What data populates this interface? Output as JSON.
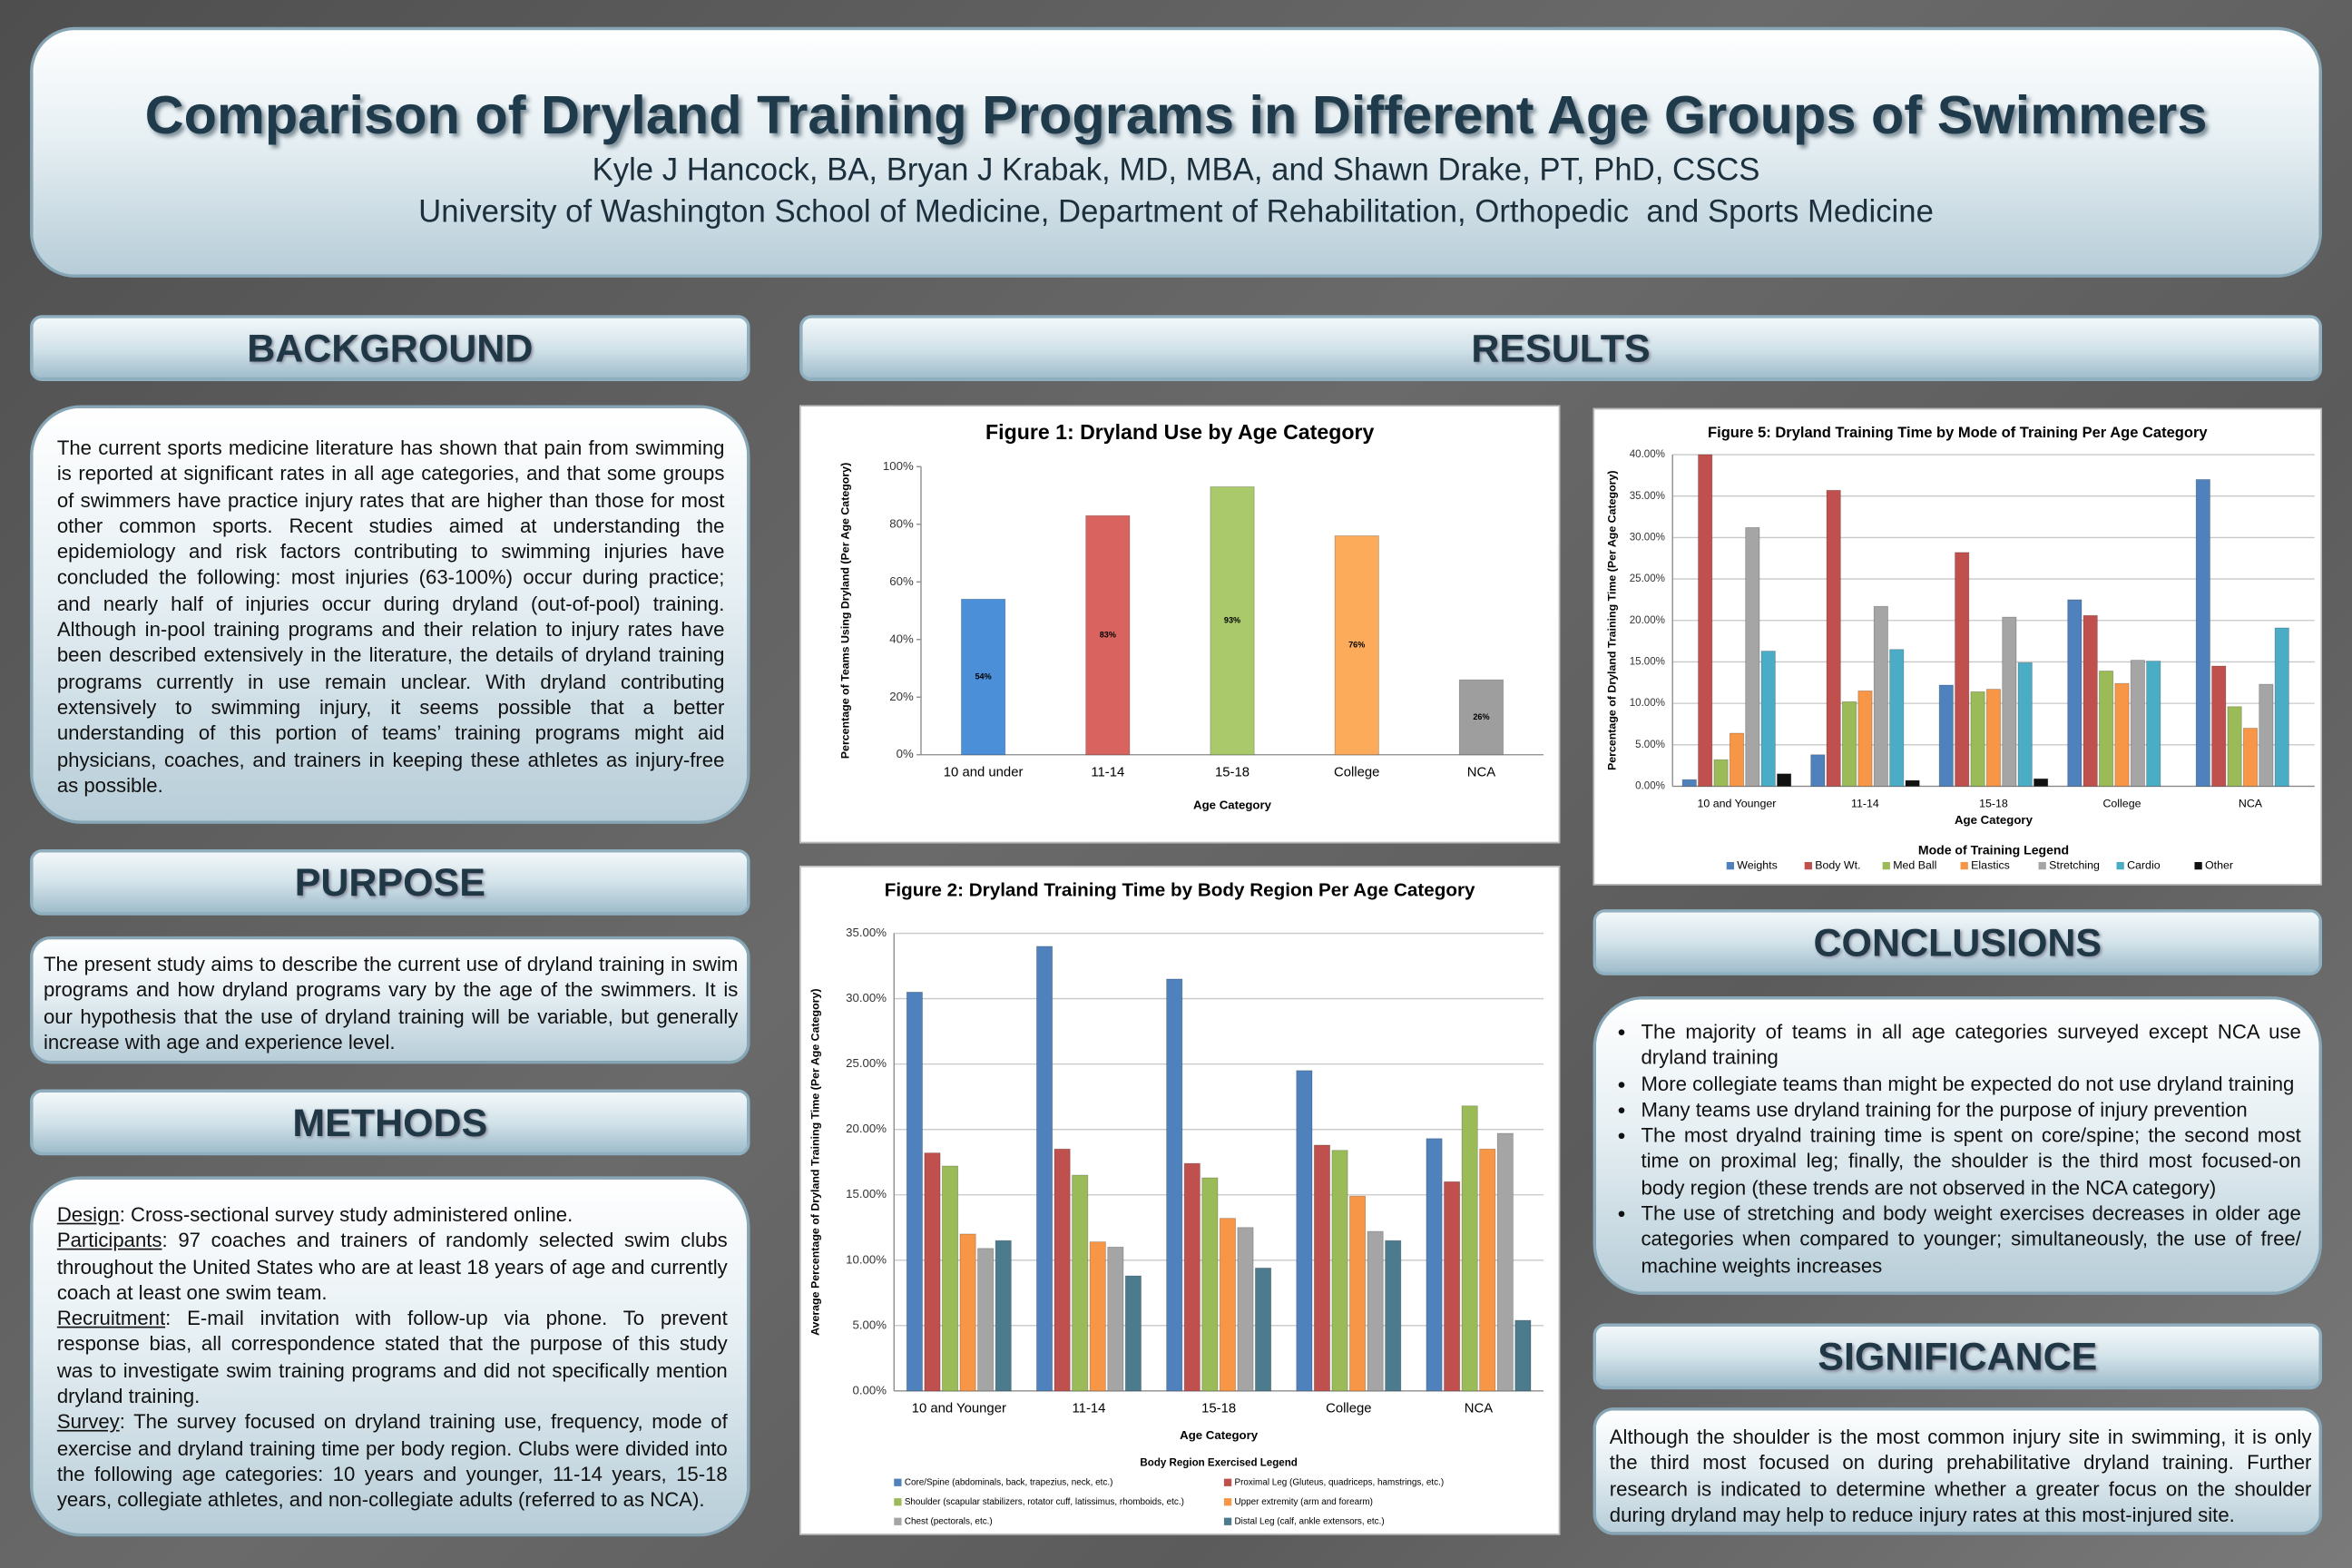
{
  "header": {
    "title": "Comparison of Dryland Training Programs in Different Age Groups of Swimmers",
    "authors": "Kyle J Hancock, BA, Bryan J Krabak, MD, MBA, and Shawn Drake, PT, PhD, CSCS",
    "affiliation": "University of Washington School of Medicine, Department of Rehabilitation, Orthopedic  and Sports Medicine"
  },
  "background": {
    "heading": "BACKGROUND",
    "text": "The current sports medicine literature has shown that pain from swimming is reported at significant rates in all age categories, and that some groups of swimmers have practice injury rates that are higher than those for most other common sports. Recent studies aimed at understanding the epidemiology and risk factors contributing to swimming injuries have concluded the following: most injuries (63-100%) occur during practice; and nearly half of injuries occur during dryland (out-of-pool) training. Although in-pool training programs and their relation to injury rates have been described extensively in the literature, the details of dryland training programs currently in use remain unclear.  With dryland contributing extensively to swimming injury, it seems possible that a better understanding of this portion of teams’ training programs might aid physicians, coaches, and trainers in keeping these athletes as injury-free as possible."
  },
  "purpose": {
    "heading": "PURPOSE",
    "text": "The present study aims to describe the current use of dryland training in swim programs and how dryland programs vary by the age of the swimmers.  It is our hypothesis that the use of dryland training will be variable, but generally increase with age and experience level."
  },
  "methods": {
    "heading": "METHODS",
    "items": [
      {
        "label": "Design",
        "text": ": Cross-sectional survey study administered online."
      },
      {
        "label": "Participants",
        "text": ": 97 coaches and trainers of randomly selected swim clubs throughout the United States who are at least 18 years of age and currently coach at least one swim team."
      },
      {
        "label": "Recruitment",
        "text": ": E-mail invitation with follow-up via phone.   To prevent response bias, all correspondence stated that the purpose of this study was to investigate swim training programs and did not specifically mention dryland training."
      },
      {
        "label": "Survey",
        "text": ": The survey focused on dryland training use, frequency, mode of exercise and dryland training time per body region.  Clubs were divided into the following age categories: 10 years and younger, 11-14 years, 15-18 years, collegiate athletes, and non-collegiate adults (referred to as  NCA)."
      }
    ]
  },
  "results": {
    "heading": "RESULTS"
  },
  "conclusions": {
    "heading": "CONCLUSIONS",
    "items": [
      "The majority of teams in all age categories surveyed except NCA use dryland training",
      "More collegiate teams than might be expected do not use dryland training",
      "Many teams use dryland training for the purpose of injury prevention",
      "The most dryalnd training time is spent on core/spine; the second most time on proximal leg; finally, the shoulder is the third most focused-on body region (these trends are not observed in the NCA category)",
      "The use of stretching and body weight exercises decreases in older age categories when compared to younger; simultaneously, the use of free/ machine weights increases"
    ]
  },
  "significance": {
    "heading": "SIGNIFICANCE",
    "text": "Although the shoulder is the most common injury site in swimming, it is only the third most focused on during prehabilitative dryland training.  Further research is indicated to determine whether a greater focus on the shoulder during dryland may help to reduce injury rates at this most-injured site."
  },
  "chart_data": [
    {
      "type": "bar",
      "title": "Figure 1: Dryland Use by Age Category",
      "x_label": "Age Category",
      "y_label": "Percentage of Teams Using Dryland (Per Age Category)",
      "categories": [
        "10 and under",
        "11-14",
        "15-18",
        "College",
        "NCA"
      ],
      "values": [
        54,
        83,
        93,
        76,
        26
      ],
      "value_labels": [
        "54%",
        "83%",
        "93%",
        "76%",
        "26%"
      ],
      "colors": [
        "#4a8fd8",
        "#d9645f",
        "#a9c96a",
        "#fbab5a",
        "#9e9e9e"
      ],
      "ylim": [
        0,
        100
      ],
      "yticks": [
        {
          "value": 0,
          "label": "0%"
        },
        {
          "value": 20,
          "label": "20%"
        },
        {
          "value": 40,
          "label": "40%"
        },
        {
          "value": 60,
          "label": "60%"
        },
        {
          "value": 80,
          "label": "80%"
        },
        {
          "value": 100,
          "label": "100%"
        }
      ],
      "grid": false
    },
    {
      "type": "bar",
      "title": "Figure 2: Dryland Training Time by Body Region Per Age Category",
      "x_label": "Age Category",
      "y_label": "Average Percentage of Dryland Training Time (Per Age Category)",
      "legend_title": "Body Region Exercised Legend",
      "categories": [
        "10 and Younger",
        "11-14",
        "15-18",
        "College",
        "NCA"
      ],
      "series": [
        {
          "name": "Core/Spine (abdominals, back, trapezius, neck, etc.)",
          "color": "#4f81bd",
          "values": [
            30.5,
            34,
            31.5,
            24.5,
            19.3
          ]
        },
        {
          "name": "Proximal Leg (Gluteus, quadriceps, hamstrings, etc.)",
          "color": "#c0504d",
          "values": [
            18.2,
            18.5,
            17.4,
            18.8,
            16
          ]
        },
        {
          "name": "Shoulder (scapular stabilizers, rotator cuff, latissimus, rhomboids, etc.)",
          "color": "#9bbb59",
          "values": [
            17.2,
            16.5,
            16.3,
            18.4,
            21.8
          ]
        },
        {
          "name": "Upper extremity (arm and forearm)",
          "color": "#f79646",
          "values": [
            12,
            11.4,
            13.2,
            14.9,
            18.5
          ]
        },
        {
          "name": "Chest (pectorals, etc.)",
          "color": "#a5a5a5",
          "values": [
            10.9,
            11,
            12.5,
            12.2,
            19.7
          ]
        },
        {
          "name": "Distal Leg (calf, ankle extensors, etc.)",
          "color": "#4b7b8c",
          "values": [
            11.5,
            8.8,
            9.4,
            11.5,
            5.4
          ]
        }
      ],
      "ylim": [
        0,
        35
      ],
      "yticks": [
        {
          "value": 0,
          "label": "0.00%"
        },
        {
          "value": 5,
          "label": "5.00%"
        },
        {
          "value": 10,
          "label": "10.00%"
        },
        {
          "value": 15,
          "label": "15.00%"
        },
        {
          "value": 20,
          "label": "20.00%"
        },
        {
          "value": 25,
          "label": "25.00%"
        },
        {
          "value": 30,
          "label": "30.00%"
        },
        {
          "value": 35,
          "label": "35.00%"
        }
      ],
      "grid": true
    },
    {
      "type": "bar",
      "title": "Figure 5: Dryland Training Time by Mode of Training Per Age Category",
      "x_label": "Age Category",
      "y_label": "Percentage of Dryland Training Time (Per Age Category)",
      "legend_title": "Mode of Training Legend",
      "categories": [
        "10 and Younger",
        "11-14",
        "15-18",
        "College",
        "NCA"
      ],
      "series": [
        {
          "name": "Weights",
          "color": "#4f81bd",
          "values": [
            0.8,
            3.8,
            12.2,
            22.5,
            37
          ]
        },
        {
          "name": "Body Wt.",
          "color": "#c0504d",
          "values": [
            40,
            35.7,
            28.2,
            20.6,
            14.5
          ]
        },
        {
          "name": "Med Ball",
          "color": "#9bbb59",
          "values": [
            3.2,
            10.2,
            11.4,
            13.9,
            9.6
          ]
        },
        {
          "name": "Elastics",
          "color": "#f79646",
          "values": [
            6.4,
            11.5,
            11.7,
            12.4,
            7
          ]
        },
        {
          "name": "Stretching",
          "color": "#a5a5a5",
          "values": [
            31.2,
            21.7,
            20.4,
            15.2,
            12.3
          ]
        },
        {
          "name": "Cardio",
          "color": "#4bacc6",
          "values": [
            16.3,
            16.5,
            14.9,
            15.1,
            19.1
          ]
        },
        {
          "name": "Other",
          "color": "#111111",
          "values": [
            1.5,
            0.7,
            0.9,
            0,
            0
          ]
        }
      ],
      "ylim": [
        0,
        40
      ],
      "yticks": [
        {
          "value": 0,
          "label": "0.00%"
        },
        {
          "value": 5,
          "label": "5.00%"
        },
        {
          "value": 10,
          "label": "10.00%"
        },
        {
          "value": 15,
          "label": "15.00%"
        },
        {
          "value": 20,
          "label": "20.00%"
        },
        {
          "value": 25,
          "label": "25.00%"
        },
        {
          "value": 30,
          "label": "30.00%"
        },
        {
          "value": 35,
          "label": "35.00%"
        },
        {
          "value": 40,
          "label": "40.00%"
        }
      ],
      "grid": true
    }
  ]
}
